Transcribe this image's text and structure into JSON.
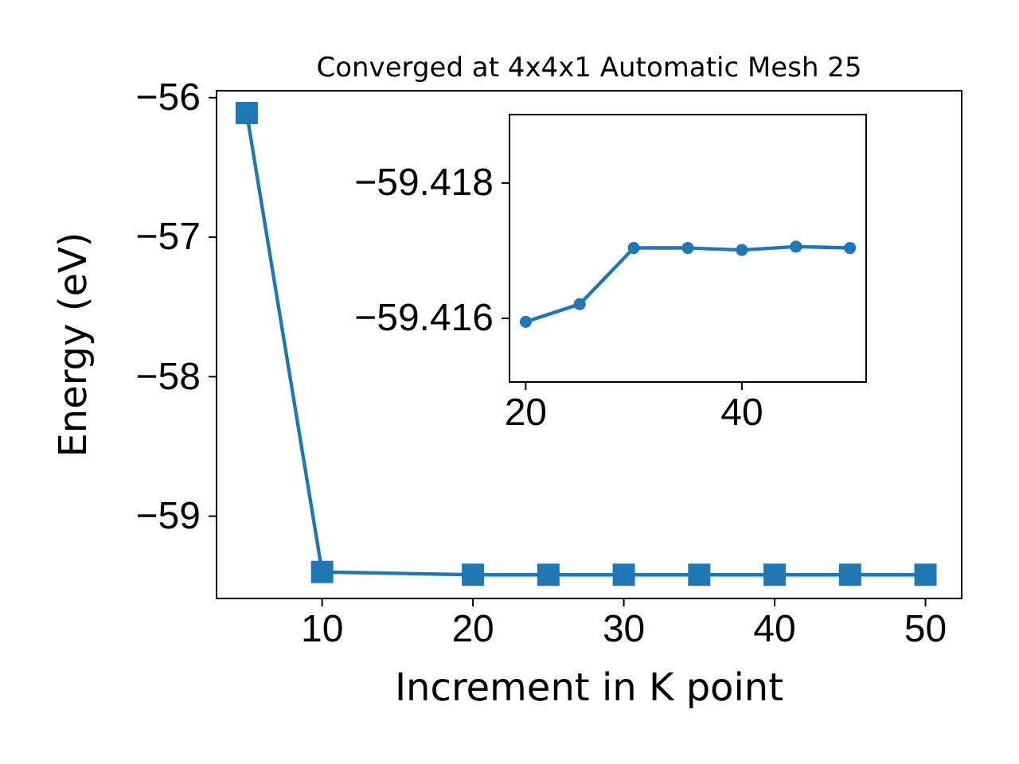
{
  "chart_data": [
    {
      "type": "line",
      "title": "Converged at 4x4x1 Automatic Mesh 25",
      "xlabel": "Increment in K point",
      "ylabel": "Energy (eV)",
      "x": [
        5,
        10,
        20,
        25,
        30,
        35,
        40,
        45,
        50
      ],
      "series": [
        {
          "color": "#1f77b4",
          "values": [
            -56.11,
            -59.4,
            -59.42,
            -59.42,
            -59.42,
            -59.42,
            -59.42,
            -59.42,
            -59.42
          ]
        }
      ],
      "xlim": [
        3,
        52.4
      ],
      "ylim": [
        -59.59,
        -55.95
      ],
      "xticks": [
        10,
        20,
        30,
        40,
        50
      ],
      "yticks": [
        {
          "value": -56,
          "label": "−56"
        },
        {
          "value": -57,
          "label": "−57"
        },
        {
          "value": -58,
          "label": "−58"
        },
        {
          "value": -59,
          "label": "−59"
        }
      ],
      "marker": "square",
      "grid": false
    },
    {
      "type": "line",
      "x": [
        20,
        25,
        30,
        35,
        40,
        45,
        50
      ],
      "series": [
        {
          "color": "#1f77b4",
          "values": [
            -59.41595,
            -59.41621,
            -59.41704,
            -59.41704,
            -59.41701,
            -59.41706,
            -59.41704
          ]
        }
      ],
      "xlim": [
        18.5,
        51.5
      ],
      "ylim": [
        -59.41506,
        -59.41901
      ],
      "xticks": [
        20,
        40
      ],
      "yticks": [
        {
          "value": -59.418,
          "label": "−59.418"
        },
        {
          "value": -59.416,
          "label": "−59.416"
        }
      ],
      "marker": "circle",
      "grid": false
    }
  ]
}
